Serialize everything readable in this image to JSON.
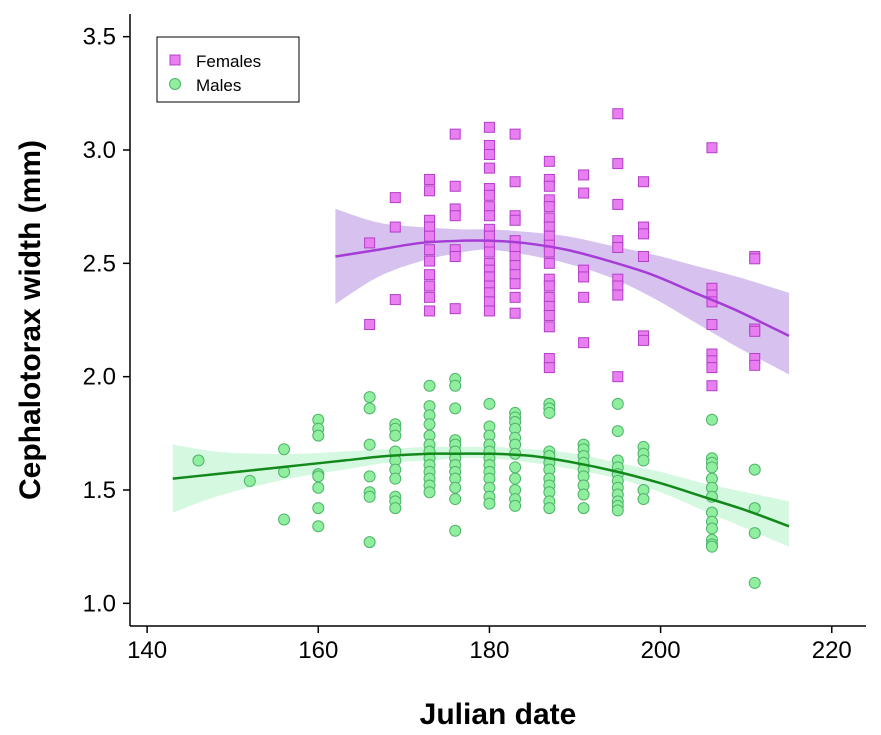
{
  "chart_data": {
    "type": "scatter",
    "xlabel": "Julian date",
    "ylabel": "Cephalotorax width (mm)",
    "xlim": [
      138,
      224
    ],
    "ylim": [
      0.9,
      3.6
    ],
    "xticks": [
      140,
      160,
      180,
      200,
      220
    ],
    "yticks": [
      "1.0",
      "1.5",
      "2.0",
      "2.5",
      "3.0",
      "3.5"
    ],
    "legend": {
      "placement": "top-left",
      "entries": [
        "Females",
        "Males"
      ]
    },
    "grid": false,
    "series": [
      {
        "name": "Females",
        "marker": "square",
        "color": "#e87ef0",
        "edge": "#b33fc9",
        "points": [
          [
            166,
            2.59
          ],
          [
            166,
            2.23
          ],
          [
            169,
            2.79
          ],
          [
            169,
            2.66
          ],
          [
            169,
            2.34
          ],
          [
            173,
            2.87
          ],
          [
            173,
            2.82
          ],
          [
            173,
            2.69
          ],
          [
            173,
            2.66
          ],
          [
            173,
            2.62
          ],
          [
            173,
            2.56
          ],
          [
            173,
            2.51
          ],
          [
            173,
            2.45
          ],
          [
            173,
            2.4
          ],
          [
            173,
            2.35
          ],
          [
            173,
            2.29
          ],
          [
            176,
            3.07
          ],
          [
            176,
            2.84
          ],
          [
            176,
            2.74
          ],
          [
            176,
            2.71
          ],
          [
            176,
            2.56
          ],
          [
            176,
            2.53
          ],
          [
            176,
            2.3
          ],
          [
            180,
            3.1
          ],
          [
            180,
            3.02
          ],
          [
            180,
            2.98
          ],
          [
            180,
            2.92
          ],
          [
            180,
            2.83
          ],
          [
            180,
            2.8
          ],
          [
            180,
            2.75
          ],
          [
            180,
            2.71
          ],
          [
            180,
            2.65
          ],
          [
            180,
            2.62
          ],
          [
            180,
            2.58
          ],
          [
            180,
            2.55
          ],
          [
            180,
            2.5
          ],
          [
            180,
            2.47
          ],
          [
            180,
            2.44
          ],
          [
            180,
            2.4
          ],
          [
            180,
            2.37
          ],
          [
            180,
            2.33
          ],
          [
            180,
            2.29
          ],
          [
            183,
            3.07
          ],
          [
            183,
            2.86
          ],
          [
            183,
            2.71
          ],
          [
            183,
            2.69
          ],
          [
            183,
            2.6
          ],
          [
            183,
            2.57
          ],
          [
            183,
            2.53
          ],
          [
            183,
            2.49
          ],
          [
            183,
            2.45
          ],
          [
            183,
            2.41
          ],
          [
            183,
            2.35
          ],
          [
            183,
            2.28
          ],
          [
            187,
            2.95
          ],
          [
            187,
            2.87
          ],
          [
            187,
            2.84
          ],
          [
            187,
            2.78
          ],
          [
            187,
            2.75
          ],
          [
            187,
            2.7
          ],
          [
            187,
            2.66
          ],
          [
            187,
            2.62
          ],
          [
            187,
            2.58
          ],
          [
            187,
            2.55
          ],
          [
            187,
            2.5
          ],
          [
            187,
            2.43
          ],
          [
            187,
            2.4
          ],
          [
            187,
            2.35
          ],
          [
            187,
            2.31
          ],
          [
            187,
            2.27
          ],
          [
            187,
            2.22
          ],
          [
            187,
            2.08
          ],
          [
            187,
            2.04
          ],
          [
            191,
            2.89
          ],
          [
            191,
            2.81
          ],
          [
            191,
            2.47
          ],
          [
            191,
            2.44
          ],
          [
            191,
            2.35
          ],
          [
            191,
            2.15
          ],
          [
            195,
            3.16
          ],
          [
            195,
            2.94
          ],
          [
            195,
            2.76
          ],
          [
            195,
            2.6
          ],
          [
            195,
            2.57
          ],
          [
            195,
            2.43
          ],
          [
            195,
            2.4
          ],
          [
            195,
            2.36
          ],
          [
            195,
            2.0
          ],
          [
            198,
            2.86
          ],
          [
            198,
            2.66
          ],
          [
            198,
            2.63
          ],
          [
            198,
            2.53
          ],
          [
            198,
            2.18
          ],
          [
            198,
            2.16
          ],
          [
            206,
            3.01
          ],
          [
            206,
            2.39
          ],
          [
            206,
            2.36
          ],
          [
            206,
            2.33
          ],
          [
            206,
            2.23
          ],
          [
            206,
            2.1
          ],
          [
            206,
            2.07
          ],
          [
            206,
            2.04
          ],
          [
            206,
            1.96
          ],
          [
            211,
            2.53
          ],
          [
            211,
            2.52
          ],
          [
            211,
            2.21
          ],
          [
            211,
            2.2
          ],
          [
            211,
            2.08
          ],
          [
            211,
            2.05
          ]
        ],
        "fit": {
          "x": [
            162,
            167,
            172,
            177,
            180,
            184,
            189,
            194,
            199,
            204,
            209,
            215
          ],
          "y": [
            2.53,
            2.56,
            2.59,
            2.6,
            2.6,
            2.59,
            2.56,
            2.51,
            2.45,
            2.37,
            2.29,
            2.18
          ],
          "lower": [
            2.32,
            2.44,
            2.51,
            2.55,
            2.56,
            2.54,
            2.5,
            2.44,
            2.35,
            2.24,
            2.13,
            2.01
          ],
          "upper": [
            2.74,
            2.68,
            2.66,
            2.65,
            2.65,
            2.64,
            2.62,
            2.58,
            2.54,
            2.49,
            2.44,
            2.37
          ],
          "color": "#a63bd6",
          "band_color": "#c9aeea"
        }
      },
      {
        "name": "Males",
        "marker": "circle",
        "color": "#8fef9f",
        "edge": "#4fb36a",
        "points": [
          [
            146,
            1.63
          ],
          [
            152,
            1.54
          ],
          [
            156,
            1.68
          ],
          [
            156,
            1.58
          ],
          [
            156,
            1.37
          ],
          [
            160,
            1.81
          ],
          [
            160,
            1.77
          ],
          [
            160,
            1.74
          ],
          [
            160,
            1.57
          ],
          [
            160,
            1.56
          ],
          [
            160,
            1.51
          ],
          [
            160,
            1.42
          ],
          [
            160,
            1.34
          ],
          [
            166,
            1.91
          ],
          [
            166,
            1.86
          ],
          [
            166,
            1.7
          ],
          [
            166,
            1.56
          ],
          [
            166,
            1.49
          ],
          [
            166,
            1.47
          ],
          [
            166,
            1.27
          ],
          [
            169,
            1.79
          ],
          [
            169,
            1.77
          ],
          [
            169,
            1.74
          ],
          [
            169,
            1.67
          ],
          [
            169,
            1.63
          ],
          [
            169,
            1.59
          ],
          [
            169,
            1.55
          ],
          [
            169,
            1.47
          ],
          [
            169,
            1.45
          ],
          [
            169,
            1.42
          ],
          [
            173,
            1.96
          ],
          [
            173,
            1.87
          ],
          [
            173,
            1.83
          ],
          [
            173,
            1.79
          ],
          [
            173,
            1.74
          ],
          [
            173,
            1.7
          ],
          [
            173,
            1.67
          ],
          [
            173,
            1.64
          ],
          [
            173,
            1.61
          ],
          [
            173,
            1.58
          ],
          [
            173,
            1.55
          ],
          [
            173,
            1.52
          ],
          [
            173,
            1.49
          ],
          [
            176,
            1.99
          ],
          [
            176,
            1.96
          ],
          [
            176,
            1.86
          ],
          [
            176,
            1.72
          ],
          [
            176,
            1.7
          ],
          [
            176,
            1.67
          ],
          [
            176,
            1.64
          ],
          [
            176,
            1.61
          ],
          [
            176,
            1.58
          ],
          [
            176,
            1.55
          ],
          [
            176,
            1.51
          ],
          [
            176,
            1.46
          ],
          [
            176,
            1.32
          ],
          [
            180,
            1.88
          ],
          [
            180,
            1.78
          ],
          [
            180,
            1.74
          ],
          [
            180,
            1.7
          ],
          [
            180,
            1.67
          ],
          [
            180,
            1.64
          ],
          [
            180,
            1.61
          ],
          [
            180,
            1.58
          ],
          [
            180,
            1.55
          ],
          [
            180,
            1.51
          ],
          [
            180,
            1.47
          ],
          [
            180,
            1.44
          ],
          [
            183,
            1.84
          ],
          [
            183,
            1.82
          ],
          [
            183,
            1.8
          ],
          [
            183,
            1.77
          ],
          [
            183,
            1.73
          ],
          [
            183,
            1.7
          ],
          [
            183,
            1.66
          ],
          [
            183,
            1.6
          ],
          [
            183,
            1.55
          ],
          [
            183,
            1.5
          ],
          [
            183,
            1.46
          ],
          [
            183,
            1.43
          ],
          [
            187,
            1.88
          ],
          [
            187,
            1.86
          ],
          [
            187,
            1.84
          ],
          [
            187,
            1.67
          ],
          [
            187,
            1.65
          ],
          [
            187,
            1.62
          ],
          [
            187,
            1.59
          ],
          [
            187,
            1.55
          ],
          [
            187,
            1.52
          ],
          [
            187,
            1.49
          ],
          [
            187,
            1.45
          ],
          [
            187,
            1.42
          ],
          [
            191,
            1.7
          ],
          [
            191,
            1.68
          ],
          [
            191,
            1.65
          ],
          [
            191,
            1.62
          ],
          [
            191,
            1.59
          ],
          [
            191,
            1.56
          ],
          [
            191,
            1.52
          ],
          [
            191,
            1.48
          ],
          [
            191,
            1.42
          ],
          [
            195,
            1.88
          ],
          [
            195,
            1.76
          ],
          [
            195,
            1.63
          ],
          [
            195,
            1.6
          ],
          [
            195,
            1.57
          ],
          [
            195,
            1.54
          ],
          [
            195,
            1.51
          ],
          [
            195,
            1.48
          ],
          [
            195,
            1.45
          ],
          [
            195,
            1.43
          ],
          [
            195,
            1.41
          ],
          [
            198,
            1.69
          ],
          [
            198,
            1.66
          ],
          [
            198,
            1.63
          ],
          [
            198,
            1.5
          ],
          [
            198,
            1.46
          ],
          [
            206,
            1.81
          ],
          [
            206,
            1.64
          ],
          [
            206,
            1.62
          ],
          [
            206,
            1.6
          ],
          [
            206,
            1.55
          ],
          [
            206,
            1.51
          ],
          [
            206,
            1.47
          ],
          [
            206,
            1.4
          ],
          [
            206,
            1.36
          ],
          [
            206,
            1.33
          ],
          [
            206,
            1.28
          ],
          [
            206,
            1.26
          ],
          [
            206,
            1.25
          ],
          [
            211,
            1.59
          ],
          [
            211,
            1.42
          ],
          [
            211,
            1.31
          ],
          [
            211,
            1.09
          ]
        ],
        "fit": {
          "x": [
            143,
            148,
            153,
            158,
            163,
            168,
            173,
            176,
            180,
            185,
            190,
            195,
            200,
            205,
            210,
            215
          ],
          "y": [
            1.55,
            1.57,
            1.59,
            1.61,
            1.63,
            1.65,
            1.66,
            1.66,
            1.66,
            1.65,
            1.62,
            1.58,
            1.53,
            1.47,
            1.41,
            1.34
          ],
          "lower": [
            1.4,
            1.47,
            1.52,
            1.56,
            1.59,
            1.62,
            1.63,
            1.64,
            1.64,
            1.62,
            1.59,
            1.55,
            1.49,
            1.41,
            1.33,
            1.25
          ],
          "upper": [
            1.7,
            1.67,
            1.66,
            1.66,
            1.67,
            1.68,
            1.69,
            1.69,
            1.69,
            1.68,
            1.66,
            1.62,
            1.58,
            1.53,
            1.49,
            1.45
          ],
          "color": "#12891a",
          "band_color": "#c6f5d6"
        }
      }
    ]
  }
}
